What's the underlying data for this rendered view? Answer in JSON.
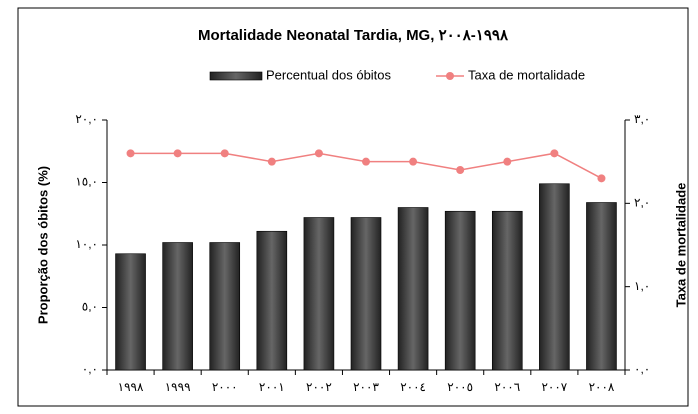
{
  "chart_data": {
    "type": "bar",
    "title": "Mortalidade Neonatal Tardia, MG, ١٩٩٨-٢٠٠٨",
    "categories": [
      "١٩٩٨",
      "١٩٩٩",
      "٢٠٠٠",
      "٢٠٠١",
      "٢٠٠٢",
      "٢٠٠٣",
      "٢٠٠٤",
      "٢٠٠٥",
      "٢٠٠٦",
      "٢٠٠٧",
      "٢٠٠٨"
    ],
    "series": [
      {
        "name": "Percentual dos óbitos",
        "type": "bar",
        "color": "#404040",
        "values": [
          9.3,
          10.2,
          10.2,
          11.1,
          12.2,
          12.2,
          13.0,
          12.7,
          12.7,
          14.9,
          13.4
        ]
      },
      {
        "name": "Taxa de mortalidade",
        "type": "line",
        "axis": "y2",
        "color": "#f08080",
        "values": [
          2.6,
          2.6,
          2.6,
          2.5,
          2.6,
          2.5,
          2.5,
          2.4,
          2.5,
          2.6,
          2.3
        ]
      }
    ],
    "ylabel": "Proporção dos óbitos (%)",
    "y2label": "Taxa de mortalidade",
    "ylim": [
      0,
      20
    ],
    "yticks": [
      {
        "value": 0,
        "label": "٠,٠"
      },
      {
        "value": 5,
        "label": "٥,٠"
      },
      {
        "value": 10,
        "label": "١٠,٠"
      },
      {
        "value": 15,
        "label": "١٥,٠"
      },
      {
        "value": 20,
        "label": "٢٠,٠"
      }
    ],
    "y2lim": [
      0,
      3
    ],
    "y2ticks": [
      {
        "value": 0,
        "label": "٠,٠"
      },
      {
        "value": 1,
        "label": "١,٠"
      },
      {
        "value": 2,
        "label": "٢,٠"
      },
      {
        "value": 3,
        "label": "٣,٠"
      }
    ],
    "legend": "top",
    "grid": false
  }
}
